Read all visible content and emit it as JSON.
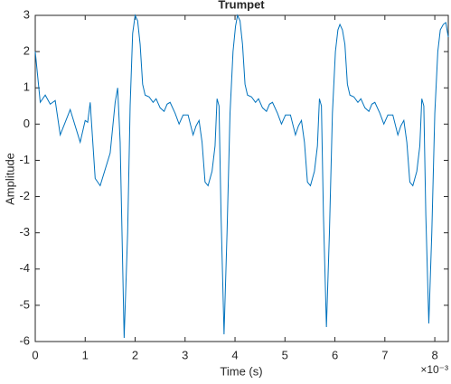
{
  "chart_data": {
    "type": "line",
    "title": "Trumpet",
    "x_label": "Time (s)",
    "y_label": "Amplitude",
    "x_exponent_label": "×10⁻³",
    "x": [
      0,
      0.1,
      0.2,
      0.3,
      0.4,
      0.5,
      0.7,
      0.9,
      1.0,
      1.05,
      1.1,
      1.2,
      1.3,
      1.5,
      1.6,
      1.65,
      1.7,
      1.78,
      1.85,
      1.9,
      1.95,
      2.0,
      2.05,
      2.1,
      2.15,
      2.2,
      2.28,
      2.36,
      2.42,
      2.5,
      2.58,
      2.64,
      2.7,
      2.8,
      2.88,
      2.96,
      3.06,
      3.16,
      3.22,
      3.28,
      3.34,
      3.4,
      3.46,
      3.54,
      3.6,
      3.64,
      3.68,
      3.72,
      3.78,
      3.84,
      3.9,
      3.96,
      4.01,
      4.05,
      4.1,
      4.15,
      4.2,
      4.25,
      4.33,
      4.41,
      4.47,
      4.55,
      4.63,
      4.69,
      4.75,
      4.85,
      4.93,
      5.01,
      5.11,
      5.21,
      5.27,
      5.33,
      5.39,
      5.45,
      5.51,
      5.59,
      5.65,
      5.69,
      5.73,
      5.77,
      5.83,
      5.89,
      5.95,
      6.01,
      6.06,
      6.1,
      6.15,
      6.2,
      6.25,
      6.3,
      6.38,
      6.46,
      6.52,
      6.6,
      6.68,
      6.74,
      6.8,
      6.9,
      6.98,
      7.06,
      7.16,
      7.26,
      7.32,
      7.38,
      7.44,
      7.5,
      7.56,
      7.64,
      7.7,
      7.74,
      7.78,
      7.82,
      7.88,
      7.94,
      8.0,
      8.06,
      8.11,
      8.17,
      8.22,
      8.27
    ],
    "series": [
      {
        "name": "Trumpet",
        "color": "#0072bd",
        "values": [
          2.0,
          0.6,
          0.8,
          0.55,
          0.65,
          -0.3,
          0.4,
          -0.5,
          0.1,
          0.05,
          0.6,
          -1.5,
          -1.7,
          -0.8,
          0.6,
          1.0,
          -0.5,
          -5.9,
          -3,
          0.5,
          2.5,
          3.0,
          2.85,
          2.2,
          1.1,
          0.8,
          0.75,
          0.6,
          0.7,
          0.45,
          0.35,
          0.55,
          0.6,
          0.3,
          0.0,
          0.25,
          0.25,
          -0.3,
          -0.05,
          0.1,
          -0.5,
          -1.6,
          -1.7,
          -1.3,
          -0.6,
          0.7,
          0.5,
          -2.5,
          -5.8,
          -3.0,
          0.3,
          2.0,
          2.7,
          3.0,
          2.85,
          2.2,
          1.1,
          0.8,
          0.75,
          0.6,
          0.7,
          0.45,
          0.35,
          0.55,
          0.6,
          0.3,
          0.0,
          0.25,
          0.25,
          -0.3,
          -0.05,
          0.1,
          -0.5,
          -1.6,
          -1.7,
          -1.3,
          -0.6,
          0.7,
          0.5,
          -2.5,
          -5.6,
          -3.0,
          0.3,
          2.0,
          2.6,
          2.75,
          2.6,
          2.2,
          1.1,
          0.8,
          0.75,
          0.6,
          0.7,
          0.45,
          0.35,
          0.55,
          0.6,
          0.3,
          0.0,
          0.25,
          0.25,
          -0.3,
          -0.05,
          0.1,
          -0.5,
          -1.6,
          -1.7,
          -1.3,
          -0.6,
          0.7,
          0.5,
          -2.5,
          -5.5,
          -3.0,
          0.3,
          2.0,
          2.6,
          2.75,
          2.8,
          2.4
        ]
      }
    ],
    "xlim": [
      0,
      8.27
    ],
    "xticks": [
      0,
      1,
      2,
      3,
      4,
      5,
      6,
      7,
      8
    ],
    "ylim": [
      -6,
      3
    ],
    "yticks": [
      -6,
      -5,
      -4,
      -3,
      -2,
      -1,
      0,
      1,
      2,
      3
    ],
    "grid": false
  }
}
